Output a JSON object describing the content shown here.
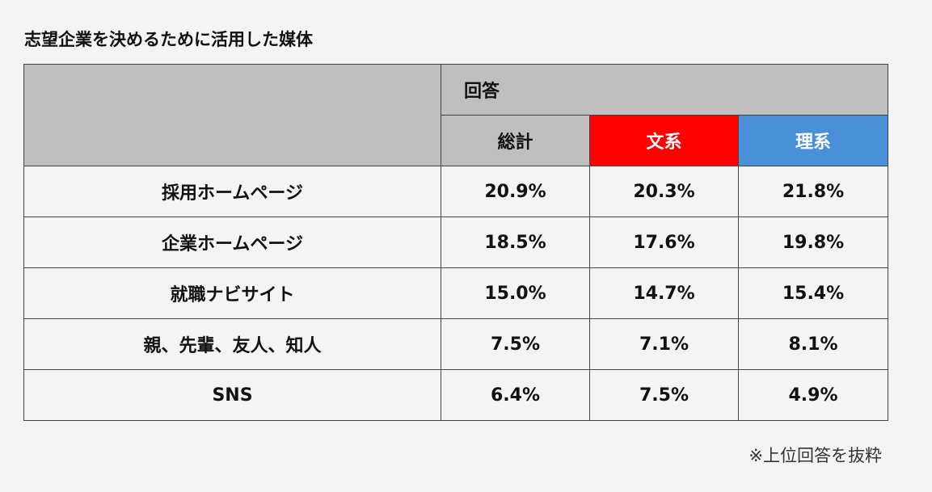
{
  "title": "志望企業を決めるために活用した媒体",
  "footnote": "※上位回答を抜粋",
  "colors": {
    "header_grey": "#bfbfbf",
    "bunkei": "#ff0000",
    "rikei": "#4a90d9",
    "background": "#f4f4f4"
  },
  "chart_data": {
    "type": "table",
    "title": "志望企業を決めるために活用した媒体",
    "group_header": "回答",
    "columns": [
      "総計",
      "文系",
      "理系"
    ],
    "rows": [
      {
        "label": "採用ホームページ",
        "values": [
          "20.9%",
          "20.3%",
          "21.8%"
        ]
      },
      {
        "label": "企業ホームページ",
        "values": [
          "18.5%",
          "17.6%",
          "19.8%"
        ]
      },
      {
        "label": "就職ナビサイト",
        "values": [
          "15.0%",
          "14.7%",
          "15.4%"
        ]
      },
      {
        "label": "親、先輩、友人、知人",
        "values": [
          "7.5%",
          "7.1%",
          "8.1%"
        ]
      },
      {
        "label": "SNS",
        "values": [
          "6.4%",
          "7.5%",
          "4.9%"
        ]
      }
    ]
  }
}
